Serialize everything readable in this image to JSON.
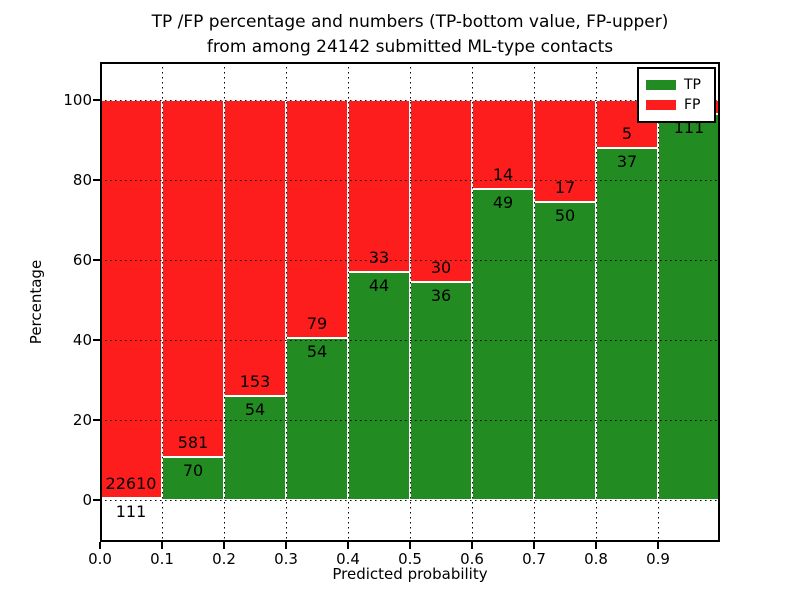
{
  "figure": {
    "title_line1": "TP /FP percentage and numbers (TP-bottom value, FP-upper)",
    "title_line2": "from among 24142 submitted ML-type contacts"
  },
  "axes": {
    "xlabel": "Predicted probability",
    "ylabel": "Percentage",
    "xtick_values": [
      0.0,
      0.1,
      0.2,
      0.3,
      0.4,
      0.5,
      0.6,
      0.7,
      0.8,
      0.9
    ],
    "xtick_labels": [
      "0.0",
      "0.1",
      "0.2",
      "0.3",
      "0.4",
      "0.5",
      "0.6",
      "0.7",
      "0.8",
      "0.9"
    ],
    "ytick_values": [
      0,
      20,
      40,
      60,
      80,
      100
    ],
    "ytick_labels": [
      "0",
      "20",
      "40",
      "60",
      "80",
      "100"
    ],
    "xgrid_values": [
      0.1,
      0.2,
      0.3,
      0.4,
      0.5,
      0.6,
      0.7,
      0.8,
      0.9
    ],
    "ygrid_values": [
      0,
      20,
      40,
      60,
      80,
      100
    ],
    "xlim": [
      0.0,
      1.0
    ],
    "ylim": [
      -10.5,
      109.5
    ],
    "grid": "dotted"
  },
  "legend": {
    "position": "upper-right",
    "items": [
      {
        "label": "TP",
        "color": "#228b22"
      },
      {
        "label": "FP",
        "color": "#fd1d1d"
      }
    ]
  },
  "colors": {
    "tp": "#228b22",
    "fp": "#fd1d1d",
    "grid": "#000000",
    "background": "#ffffff",
    "text": "#000000"
  },
  "chart_data": {
    "type": "bar",
    "subtype": "stacked-100-percent",
    "title": "TP /FP percentage and numbers (TP-bottom value, FP-upper) from among 24142 submitted ML-type contacts",
    "xlabel": "Predicted probability",
    "ylabel": "Percentage",
    "total_submitted_contacts": 24142,
    "bin_width": 0.1,
    "categories": [
      "0.0-0.1",
      "0.1-0.2",
      "0.2-0.3",
      "0.3-0.4",
      "0.4-0.5",
      "0.5-0.6",
      "0.6-0.7",
      "0.7-0.8",
      "0.8-0.9",
      "0.9-1.0"
    ],
    "series": [
      {
        "name": "TP",
        "counts": [
          111,
          70,
          54,
          54,
          44,
          36,
          49,
          50,
          37,
          111
        ]
      },
      {
        "name": "FP",
        "counts": [
          22610,
          581,
          153,
          79,
          33,
          30,
          14,
          17,
          5,
          null
        ]
      }
    ],
    "bars": [
      {
        "bin_start": 0.0,
        "bin_end": 0.1,
        "tp": 111,
        "fp": 22610,
        "tp_pct": 0.5
      },
      {
        "bin_start": 0.1,
        "bin_end": 0.2,
        "tp": 70,
        "fp": 581,
        "tp_pct": 10.75
      },
      {
        "bin_start": 0.2,
        "bin_end": 0.3,
        "tp": 54,
        "fp": 153,
        "tp_pct": 26.1
      },
      {
        "bin_start": 0.3,
        "bin_end": 0.4,
        "tp": 54,
        "fp": 79,
        "tp_pct": 40.6
      },
      {
        "bin_start": 0.4,
        "bin_end": 0.5,
        "tp": 44,
        "fp": 33,
        "tp_pct": 57.1
      },
      {
        "bin_start": 0.5,
        "bin_end": 0.6,
        "tp": 36,
        "fp": 30,
        "tp_pct": 54.5
      },
      {
        "bin_start": 0.6,
        "bin_end": 0.7,
        "tp": 49,
        "fp": 14,
        "tp_pct": 77.8
      },
      {
        "bin_start": 0.7,
        "bin_end": 0.8,
        "tp": 50,
        "fp": 17,
        "tp_pct": 74.6
      },
      {
        "bin_start": 0.8,
        "bin_end": 0.9,
        "tp": 37,
        "fp": 5,
        "tp_pct": 88.1
      },
      {
        "bin_start": 0.9,
        "bin_end": 1.0,
        "tp": 111,
        "fp": null,
        "tp_pct": 96.5
      }
    ],
    "ylim": [
      -10.5,
      109.5
    ],
    "xlim": [
      0.0,
      1.0
    ],
    "legend_position": "upper-right",
    "grid": "dotted"
  }
}
